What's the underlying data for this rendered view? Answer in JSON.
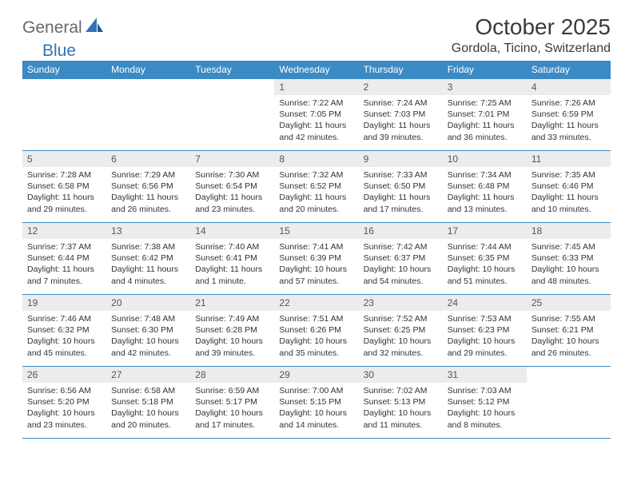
{
  "brand": {
    "general": "General",
    "blue": "Blue"
  },
  "title": "October 2025",
  "location": "Gordola, Ticino, Switzerland",
  "colors": {
    "header_bg": "#3b8ac4",
    "header_fg": "#ffffff",
    "daynum_bg": "#ececec",
    "border": "#3b8ac4",
    "logo_gray": "#6a6a6a",
    "logo_blue": "#2f75b5",
    "text": "#333333",
    "page_bg": "#ffffff"
  },
  "weekdays": [
    "Sunday",
    "Monday",
    "Tuesday",
    "Wednesday",
    "Thursday",
    "Friday",
    "Saturday"
  ],
  "weeks": [
    [
      null,
      null,
      null,
      {
        "n": "1",
        "sr": "7:22 AM",
        "ss": "7:05 PM",
        "dl": "11 hours and 42 minutes."
      },
      {
        "n": "2",
        "sr": "7:24 AM",
        "ss": "7:03 PM",
        "dl": "11 hours and 39 minutes."
      },
      {
        "n": "3",
        "sr": "7:25 AM",
        "ss": "7:01 PM",
        "dl": "11 hours and 36 minutes."
      },
      {
        "n": "4",
        "sr": "7:26 AM",
        "ss": "6:59 PM",
        "dl": "11 hours and 33 minutes."
      }
    ],
    [
      {
        "n": "5",
        "sr": "7:28 AM",
        "ss": "6:58 PM",
        "dl": "11 hours and 29 minutes."
      },
      {
        "n": "6",
        "sr": "7:29 AM",
        "ss": "6:56 PM",
        "dl": "11 hours and 26 minutes."
      },
      {
        "n": "7",
        "sr": "7:30 AM",
        "ss": "6:54 PM",
        "dl": "11 hours and 23 minutes."
      },
      {
        "n": "8",
        "sr": "7:32 AM",
        "ss": "6:52 PM",
        "dl": "11 hours and 20 minutes."
      },
      {
        "n": "9",
        "sr": "7:33 AM",
        "ss": "6:50 PM",
        "dl": "11 hours and 17 minutes."
      },
      {
        "n": "10",
        "sr": "7:34 AM",
        "ss": "6:48 PM",
        "dl": "11 hours and 13 minutes."
      },
      {
        "n": "11",
        "sr": "7:35 AM",
        "ss": "6:46 PM",
        "dl": "11 hours and 10 minutes."
      }
    ],
    [
      {
        "n": "12",
        "sr": "7:37 AM",
        "ss": "6:44 PM",
        "dl": "11 hours and 7 minutes."
      },
      {
        "n": "13",
        "sr": "7:38 AM",
        "ss": "6:42 PM",
        "dl": "11 hours and 4 minutes."
      },
      {
        "n": "14",
        "sr": "7:40 AM",
        "ss": "6:41 PM",
        "dl": "11 hours and 1 minute."
      },
      {
        "n": "15",
        "sr": "7:41 AM",
        "ss": "6:39 PM",
        "dl": "10 hours and 57 minutes."
      },
      {
        "n": "16",
        "sr": "7:42 AM",
        "ss": "6:37 PM",
        "dl": "10 hours and 54 minutes."
      },
      {
        "n": "17",
        "sr": "7:44 AM",
        "ss": "6:35 PM",
        "dl": "10 hours and 51 minutes."
      },
      {
        "n": "18",
        "sr": "7:45 AM",
        "ss": "6:33 PM",
        "dl": "10 hours and 48 minutes."
      }
    ],
    [
      {
        "n": "19",
        "sr": "7:46 AM",
        "ss": "6:32 PM",
        "dl": "10 hours and 45 minutes."
      },
      {
        "n": "20",
        "sr": "7:48 AM",
        "ss": "6:30 PM",
        "dl": "10 hours and 42 minutes."
      },
      {
        "n": "21",
        "sr": "7:49 AM",
        "ss": "6:28 PM",
        "dl": "10 hours and 39 minutes."
      },
      {
        "n": "22",
        "sr": "7:51 AM",
        "ss": "6:26 PM",
        "dl": "10 hours and 35 minutes."
      },
      {
        "n": "23",
        "sr": "7:52 AM",
        "ss": "6:25 PM",
        "dl": "10 hours and 32 minutes."
      },
      {
        "n": "24",
        "sr": "7:53 AM",
        "ss": "6:23 PM",
        "dl": "10 hours and 29 minutes."
      },
      {
        "n": "25",
        "sr": "7:55 AM",
        "ss": "6:21 PM",
        "dl": "10 hours and 26 minutes."
      }
    ],
    [
      {
        "n": "26",
        "sr": "6:56 AM",
        "ss": "5:20 PM",
        "dl": "10 hours and 23 minutes."
      },
      {
        "n": "27",
        "sr": "6:58 AM",
        "ss": "5:18 PM",
        "dl": "10 hours and 20 minutes."
      },
      {
        "n": "28",
        "sr": "6:59 AM",
        "ss": "5:17 PM",
        "dl": "10 hours and 17 minutes."
      },
      {
        "n": "29",
        "sr": "7:00 AM",
        "ss": "5:15 PM",
        "dl": "10 hours and 14 minutes."
      },
      {
        "n": "30",
        "sr": "7:02 AM",
        "ss": "5:13 PM",
        "dl": "10 hours and 11 minutes."
      },
      {
        "n": "31",
        "sr": "7:03 AM",
        "ss": "5:12 PM",
        "dl": "10 hours and 8 minutes."
      },
      null
    ]
  ],
  "labels": {
    "sunrise": "Sunrise: ",
    "sunset": "Sunset: ",
    "daylight": "Daylight: "
  }
}
